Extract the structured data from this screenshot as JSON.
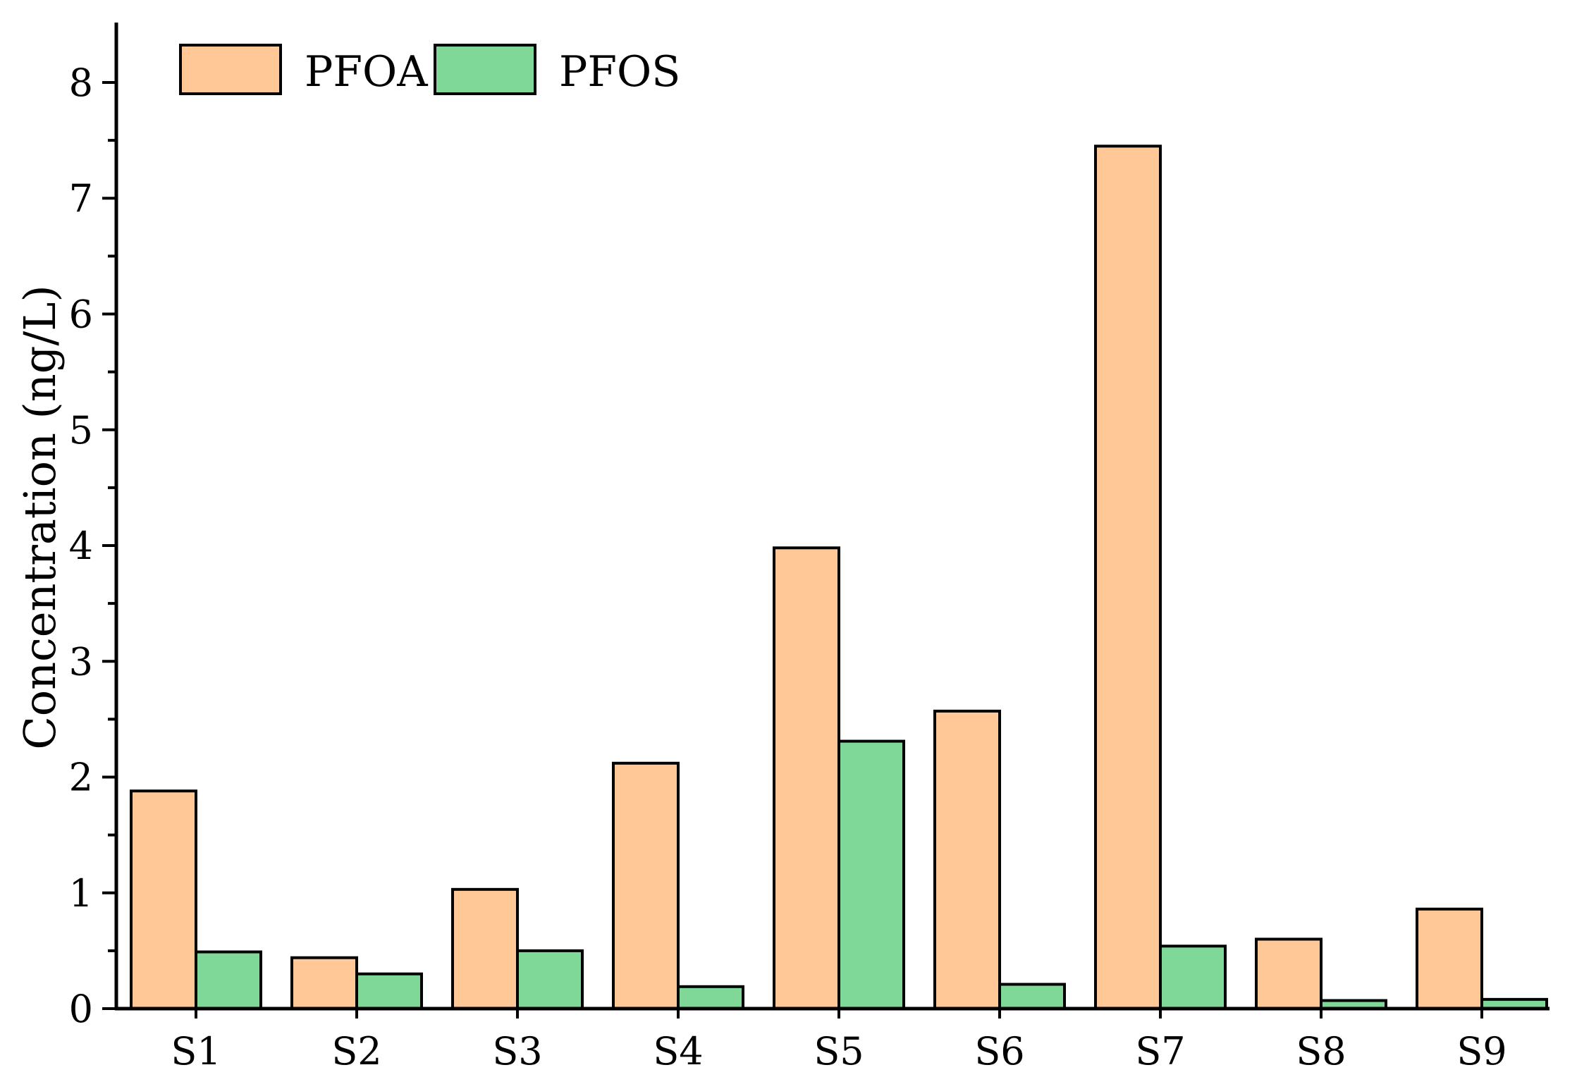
{
  "chart_data": {
    "type": "bar",
    "title": "",
    "xlabel": "",
    "ylabel": "Concentration (ng/L)",
    "categories": [
      "S1",
      "S2",
      "S3",
      "S4",
      "S5",
      "S6",
      "S7",
      "S8",
      "S9"
    ],
    "series": [
      {
        "name": "PFOA",
        "color": "#FFC896",
        "values": [
          1.88,
          0.44,
          1.03,
          2.12,
          3.98,
          2.57,
          7.45,
          0.6,
          0.86
        ]
      },
      {
        "name": "PFOS",
        "color": "#80D898",
        "values": [
          0.49,
          0.3,
          0.5,
          0.19,
          2.31,
          0.21,
          0.54,
          0.07,
          0.08
        ]
      }
    ],
    "ylim": [
      0,
      8.5
    ],
    "yticks": [
      0,
      1,
      2,
      3,
      4,
      5,
      6,
      7,
      8
    ],
    "grid": false,
    "legend_position": "top-left"
  }
}
